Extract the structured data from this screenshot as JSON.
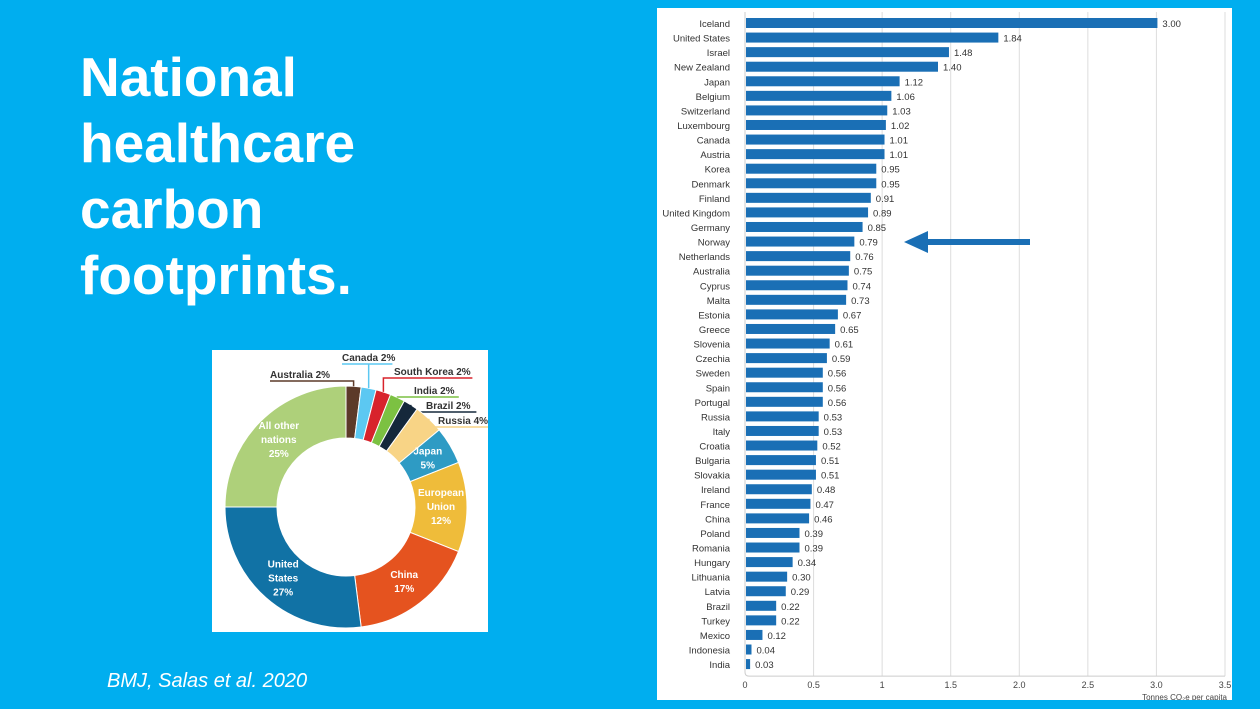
{
  "slide": {
    "title": "National healthcare carbon footprints.",
    "citation": "BMJ, Salas et al. 2020",
    "background_color": "#00aeef",
    "arrow": {
      "points_to": "Norway",
      "color": "#1a6fb5"
    }
  },
  "chart_data": [
    {
      "type": "pie",
      "style": "donut",
      "slices": [
        {
          "label": "Australia",
          "value": 2,
          "text": "Australia 2%",
          "color": "#5c3a29"
        },
        {
          "label": "Canada",
          "value": 2,
          "text": "Canada 2%",
          "color": "#5cc8f2"
        },
        {
          "label": "South Korea",
          "value": 2,
          "text": "South Korea 2%",
          "color": "#d8232c"
        },
        {
          "label": "India",
          "value": 2,
          "text": "India 2%",
          "color": "#7cc142"
        },
        {
          "label": "Brazil",
          "value": 2,
          "text": "Brazil 2%",
          "color": "#15283b"
        },
        {
          "label": "Russia",
          "value": 4,
          "text": "Russia 4%",
          "color": "#f8d486"
        },
        {
          "label": "Japan",
          "value": 5,
          "text": "Japan\n5%",
          "color": "#2e9bc4"
        },
        {
          "label": "European Union",
          "value": 12,
          "text": "European\nUnion\n12%",
          "color": "#efbc3a"
        },
        {
          "label": "China",
          "value": 17,
          "text": "China\n17%",
          "color": "#e5531f"
        },
        {
          "label": "United States",
          "value": 27,
          "text": "United\nStates\n27%",
          "color": "#1172a5"
        },
        {
          "label": "All other nations",
          "value": 25,
          "text": "All other\nnations\n25%",
          "color": "#aed07a"
        }
      ]
    },
    {
      "type": "bar",
      "orientation": "horizontal",
      "xlabel": "Tonnes CO₂e per capita",
      "xlim": [
        0,
        3.5
      ],
      "xticks": [
        "0",
        "0.5",
        "1",
        "1.5",
        "2.0",
        "2.5",
        "3.0",
        "3.5"
      ],
      "grid": true,
      "bar_color": "#1a6fb5",
      "categories": [
        "Iceland",
        "United States",
        "Israel",
        "New Zealand",
        "Japan",
        "Belgium",
        "Switzerland",
        "Luxembourg",
        "Canada",
        "Austria",
        "Korea",
        "Denmark",
        "Finland",
        "United Kingdom",
        "Germany",
        "Norway",
        "Netherlands",
        "Australia",
        "Cyprus",
        "Malta",
        "Estonia",
        "Greece",
        "Slovenia",
        "Czechia",
        "Sweden",
        "Spain",
        "Portugal",
        "Russia",
        "Italy",
        "Croatia",
        "Bulgaria",
        "Slovakia",
        "Ireland",
        "France",
        "China",
        "Poland",
        "Romania",
        "Hungary",
        "Lithuania",
        "Latvia",
        "Brazil",
        "Turkey",
        "Mexico",
        "Indonesia",
        "India"
      ],
      "values": [
        3.0,
        1.84,
        1.48,
        1.4,
        1.12,
        1.06,
        1.03,
        1.02,
        1.01,
        1.01,
        0.95,
        0.95,
        0.91,
        0.89,
        0.85,
        0.79,
        0.76,
        0.75,
        0.74,
        0.73,
        0.67,
        0.65,
        0.61,
        0.59,
        0.56,
        0.56,
        0.56,
        0.53,
        0.53,
        0.52,
        0.51,
        0.51,
        0.48,
        0.47,
        0.46,
        0.39,
        0.39,
        0.34,
        0.3,
        0.29,
        0.22,
        0.22,
        0.12,
        0.04,
        0.03
      ]
    }
  ]
}
